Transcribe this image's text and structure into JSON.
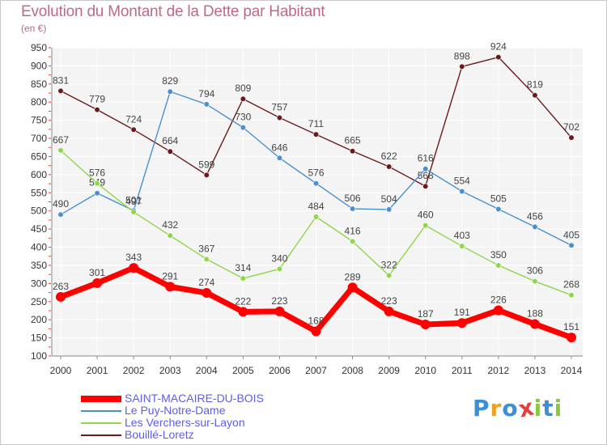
{
  "chart_data": {
    "type": "line",
    "title": "Evolution du Montant de la Dette par Habitant",
    "unit_label": "(en €)",
    "x": [
      "2000",
      "2001",
      "2002",
      "2003",
      "2004",
      "2005",
      "2006",
      "2007",
      "2008",
      "2009",
      "2010",
      "2011",
      "2012",
      "2013",
      "2014"
    ],
    "ylim": [
      100,
      950
    ],
    "yticks": [
      100,
      150,
      200,
      250,
      300,
      350,
      400,
      450,
      500,
      550,
      600,
      650,
      700,
      750,
      800,
      850,
      900,
      950
    ],
    "grid": true,
    "legend_position": "bottom-left",
    "series": [
      {
        "name": "Bouillé-Loretz",
        "color": "#6b1a1a",
        "width": 1.4,
        "values": [
          831,
          779,
          724,
          664,
          599,
          809,
          757,
          711,
          665,
          622,
          568,
          898,
          924,
          819,
          702
        ]
      },
      {
        "name": "Le Puy-Notre-Dame",
        "color": "#4a90d0",
        "width": 1.4,
        "values": [
          490,
          549,
          501,
          829,
          794,
          730,
          646,
          576,
          506,
          504,
          616,
          554,
          505,
          456,
          405
        ]
      },
      {
        "name": "Les Verchers-sur-Layon",
        "color": "#8ed64a",
        "width": 1.4,
        "values": [
          667,
          576,
          497,
          432,
          367,
          314,
          340,
          484,
          416,
          322,
          460,
          403,
          350,
          306,
          268
        ]
      },
      {
        "name": "SAINT-MACAIRE-DU-BOIS",
        "color": "#ff0000",
        "width": 7,
        "values": [
          263,
          301,
          343,
          291,
          274,
          222,
          223,
          168,
          289,
          223,
          187,
          191,
          226,
          188,
          151
        ]
      }
    ],
    "legend_order": [
      "SAINT-MACAIRE-DU-BOIS",
      "Le Puy-Notre-Dame",
      "Les Verchers-sur-Layon",
      "Bouillé-Loretz"
    ]
  },
  "logo": {
    "letters": [
      "P",
      "r",
      "o",
      "x",
      "i",
      "t",
      "i"
    ],
    "colors": [
      "#3a8fd8",
      "#f0a020",
      "#3a8fd8",
      "#e04040",
      "#8ac840",
      "#3a8fd8",
      "#8ac840"
    ]
  }
}
